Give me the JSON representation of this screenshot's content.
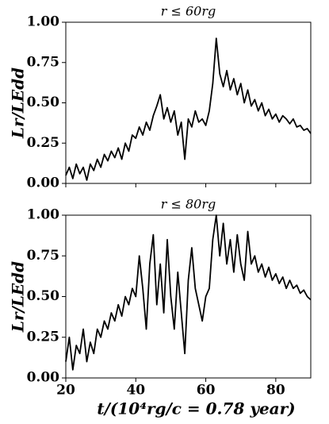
{
  "chart_data": [
    {
      "type": "line",
      "title": "r ≤ 60rg",
      "ylabel": "Lr/LEdd",
      "x": [
        20,
        21,
        22,
        23,
        24,
        25,
        26,
        27,
        28,
        29,
        30,
        31,
        32,
        33,
        34,
        35,
        36,
        37,
        38,
        39,
        40,
        41,
        42,
        43,
        44,
        45,
        46,
        47,
        48,
        49,
        50,
        51,
        52,
        53,
        54,
        55,
        56,
        57,
        58,
        59,
        60,
        61,
        62,
        63,
        64,
        65,
        66,
        67,
        68,
        69,
        70,
        71,
        72,
        73,
        74,
        75,
        76,
        77,
        78,
        79,
        80,
        81,
        82,
        83,
        84,
        85,
        86,
        87,
        88,
        89,
        90
      ],
      "series": [
        {
          "color": "#000000",
          "values": [
            0.05,
            0.1,
            0.03,
            0.12,
            0.06,
            0.1,
            0.02,
            0.12,
            0.08,
            0.15,
            0.1,
            0.18,
            0.14,
            0.2,
            0.16,
            0.22,
            0.15,
            0.25,
            0.2,
            0.3,
            0.28,
            0.35,
            0.3,
            0.38,
            0.33,
            0.42,
            0.48,
            0.55,
            0.4,
            0.47,
            0.38,
            0.45,
            0.3,
            0.38,
            0.15,
            0.4,
            0.35,
            0.45,
            0.38,
            0.4,
            0.36,
            0.45,
            0.62,
            0.9,
            0.68,
            0.6,
            0.7,
            0.58,
            0.65,
            0.55,
            0.62,
            0.5,
            0.58,
            0.48,
            0.52,
            0.45,
            0.5,
            0.42,
            0.46,
            0.4,
            0.43,
            0.38,
            0.42,
            0.4,
            0.37,
            0.4,
            0.35,
            0.36,
            0.33,
            0.34,
            0.31
          ]
        }
      ],
      "xlim": [
        20,
        90
      ],
      "xticks": [
        20,
        40,
        60,
        80
      ],
      "ylim": [
        0,
        1
      ],
      "yticks": [
        {
          "value": 0,
          "label": "0.00"
        },
        {
          "value": 0.25,
          "label": "0.25"
        },
        {
          "value": 0.5,
          "label": "0.50"
        },
        {
          "value": 0.75,
          "label": "0.75"
        },
        {
          "value": 1,
          "label": "1.00"
        }
      ]
    },
    {
      "type": "line",
      "title": "r ≤ 80rg",
      "ylabel": "Lr/LEdd",
      "xlabel": "t/(10⁴rg/c = 0.78 year)",
      "x": [
        20,
        21,
        22,
        23,
        24,
        25,
        26,
        27,
        28,
        29,
        30,
        31,
        32,
        33,
        34,
        35,
        36,
        37,
        38,
        39,
        40,
        41,
        42,
        43,
        44,
        45,
        46,
        47,
        48,
        49,
        50,
        51,
        52,
        53,
        54,
        55,
        56,
        57,
        58,
        59,
        60,
        61,
        62,
        63,
        64,
        65,
        66,
        67,
        68,
        69,
        70,
        71,
        72,
        73,
        74,
        75,
        76,
        77,
        78,
        79,
        80,
        81,
        82,
        83,
        84,
        85,
        86,
        87,
        88,
        89,
        90
      ],
      "series": [
        {
          "color": "#000000",
          "values": [
            0.1,
            0.25,
            0.05,
            0.2,
            0.15,
            0.3,
            0.1,
            0.22,
            0.15,
            0.3,
            0.25,
            0.35,
            0.3,
            0.4,
            0.35,
            0.45,
            0.38,
            0.5,
            0.45,
            0.55,
            0.5,
            0.75,
            0.55,
            0.3,
            0.7,
            0.88,
            0.45,
            0.7,
            0.4,
            0.85,
            0.5,
            0.3,
            0.65,
            0.4,
            0.15,
            0.6,
            0.8,
            0.55,
            0.45,
            0.35,
            0.5,
            0.55,
            0.85,
            1.0,
            0.75,
            0.95,
            0.7,
            0.85,
            0.65,
            0.88,
            0.7,
            0.6,
            0.9,
            0.7,
            0.75,
            0.65,
            0.7,
            0.62,
            0.68,
            0.6,
            0.64,
            0.58,
            0.62,
            0.55,
            0.6,
            0.55,
            0.57,
            0.52,
            0.54,
            0.5,
            0.48
          ]
        }
      ],
      "xlim": [
        20,
        90
      ],
      "xticks": [
        20,
        40,
        60,
        80
      ],
      "ylim": [
        0,
        1
      ],
      "yticks": [
        {
          "value": 0,
          "label": "0.00"
        },
        {
          "value": 0.25,
          "label": "0.25"
        },
        {
          "value": 0.5,
          "label": "0.50"
        },
        {
          "value": 0.75,
          "label": "0.75"
        },
        {
          "value": 1,
          "label": "1.00"
        }
      ]
    }
  ]
}
